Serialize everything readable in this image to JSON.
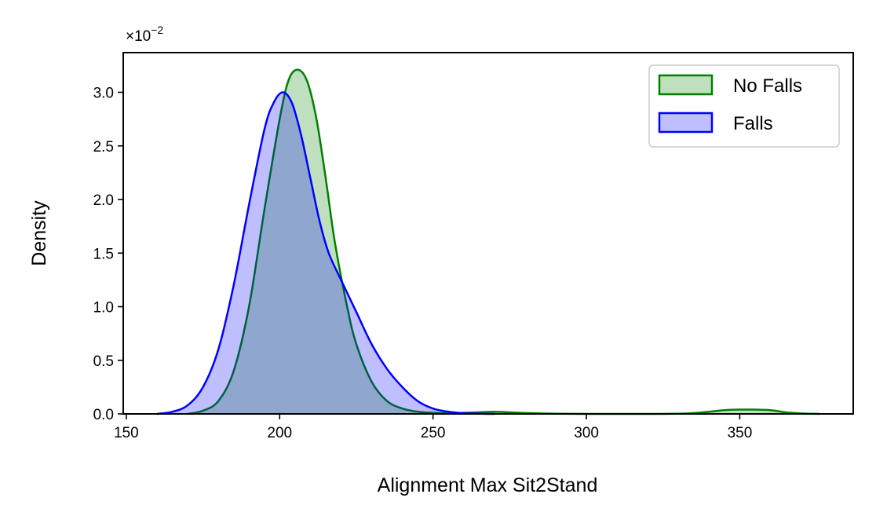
{
  "chart_data": {
    "type": "area",
    "title": "",
    "xlabel": "Alignment Max Sit2Stand",
    "ylabel": "Density",
    "y_multiplier_base": "×10",
    "y_multiplier_exponent": "−2",
    "xlim": [
      149,
      387
    ],
    "ylim": [
      0,
      3.37
    ],
    "x_ticks": [
      150,
      200,
      250,
      300,
      350
    ],
    "x_tick_labels": [
      "150",
      "200",
      "250",
      "300",
      "350"
    ],
    "y_ticks": [
      0.0,
      0.5,
      1.0,
      1.5,
      2.0,
      2.5,
      3.0
    ],
    "y_tick_labels": [
      "0.0",
      "0.5",
      "1.0",
      "1.5",
      "2.0",
      "2.5",
      "3.0"
    ],
    "grid": false,
    "legend_position": "top-right",
    "series": [
      {
        "name": "No Falls",
        "line_color": "#008000",
        "fill_color": "#008000",
        "fill_opacity": 0.25,
        "x": [
          170,
          175,
          180,
          185,
          190,
          195,
          200,
          203,
          206,
          209,
          212,
          215,
          218,
          222,
          225,
          230,
          235,
          240,
          245,
          250,
          255,
          260,
          265,
          270,
          275,
          280,
          290,
          300,
          310,
          320,
          330,
          335,
          340,
          345,
          350,
          355,
          360,
          365,
          370,
          376
        ],
        "y": [
          0.0,
          0.03,
          0.12,
          0.4,
          1.0,
          1.9,
          2.75,
          3.12,
          3.21,
          3.1,
          2.75,
          2.2,
          1.6,
          1.0,
          0.65,
          0.3,
          0.12,
          0.05,
          0.02,
          0.01,
          0.005,
          0.01,
          0.015,
          0.02,
          0.015,
          0.008,
          0.002,
          0.0,
          0.0,
          0.0,
          0.002,
          0.008,
          0.02,
          0.035,
          0.04,
          0.04,
          0.035,
          0.015,
          0.005,
          0.0
        ]
      },
      {
        "name": "Falls",
        "line_color": "#0000ff",
        "fill_color": "#0000ff",
        "fill_opacity": 0.25,
        "x": [
          160,
          165,
          170,
          175,
          180,
          185,
          190,
          195,
          198,
          201,
          204,
          207,
          210,
          213,
          216,
          220,
          225,
          230,
          235,
          240,
          245,
          250,
          255,
          260,
          265,
          270
        ],
        "y": [
          0.0,
          0.02,
          0.08,
          0.25,
          0.6,
          1.2,
          1.95,
          2.65,
          2.9,
          3.0,
          2.9,
          2.6,
          2.2,
          1.8,
          1.5,
          1.25,
          0.95,
          0.65,
          0.42,
          0.25,
          0.12,
          0.05,
          0.02,
          0.007,
          0.002,
          0.0
        ]
      }
    ]
  }
}
